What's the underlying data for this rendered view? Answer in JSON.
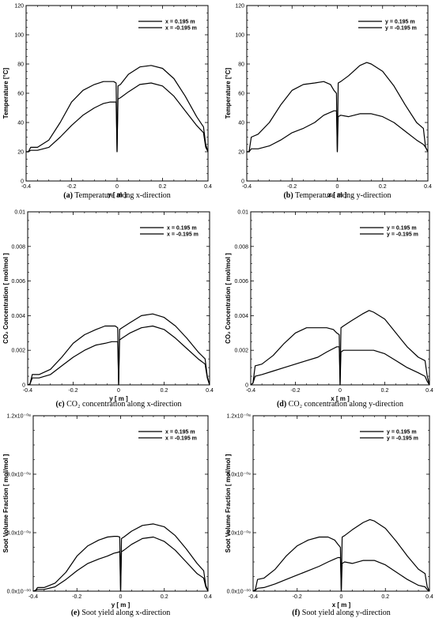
{
  "chart_data": [
    {
      "type": "line",
      "caption_letter": "(a)",
      "caption_text": "Temperature along x-direction",
      "xlabel": "y [ m ]",
      "ylabel": "Temperature [°C]",
      "xlim": [
        -0.4,
        0.4
      ],
      "ylim": [
        0,
        120
      ],
      "x_ticks": [
        "-0.4",
        "-0.2",
        "0",
        "0.2",
        "0.4"
      ],
      "y_ticks": [
        "0",
        "20",
        "40",
        "60",
        "80",
        "100",
        "120"
      ],
      "series": [
        {
          "name": "x = 0.195 m",
          "dash": "solid",
          "x": [
            -0.4,
            -0.39,
            -0.38,
            -0.35,
            -0.3,
            -0.25,
            -0.2,
            -0.15,
            -0.1,
            -0.06,
            -0.03,
            -0.015,
            -0.004,
            0,
            0.004,
            0.015,
            0.05,
            0.1,
            0.15,
            0.2,
            0.25,
            0.3,
            0.35,
            0.38,
            0.39,
            0.4
          ],
          "y": [
            20,
            20,
            23,
            23,
            28,
            40,
            54,
            62,
            66,
            68,
            68,
            68,
            67,
            20,
            65,
            66,
            73,
            78,
            79,
            77,
            70,
            58,
            44,
            37,
            25,
            20
          ]
        },
        {
          "name": "x = -0.195 m",
          "dash": "solid",
          "x": [
            -0.4,
            -0.39,
            -0.38,
            -0.35,
            -0.3,
            -0.25,
            -0.2,
            -0.15,
            -0.1,
            -0.06,
            -0.03,
            -0.015,
            -0.004,
            0,
            0.004,
            0.015,
            0.05,
            0.1,
            0.15,
            0.2,
            0.25,
            0.3,
            0.35,
            0.38,
            0.39,
            0.4
          ],
          "y": [
            20,
            20,
            21,
            21,
            23,
            30,
            38,
            45,
            50,
            53,
            54,
            54,
            54,
            20,
            56,
            57,
            61,
            66,
            67,
            65,
            58,
            48,
            38,
            33,
            23,
            20
          ]
        }
      ]
    },
    {
      "type": "line",
      "caption_letter": "(b)",
      "caption_text": "Temperature along y-direction",
      "xlabel": "x [ m ]",
      "ylabel": "Temperature [°C]",
      "xlim": [
        -0.4,
        0.4
      ],
      "ylim": [
        0,
        120
      ],
      "x_ticks": [
        "-0.4",
        "-0.2",
        "0",
        "0.2",
        "0.4"
      ],
      "y_ticks": [
        "0",
        "20",
        "40",
        "60",
        "80",
        "100",
        "120"
      ],
      "series": [
        {
          "name": "y = 0.195 m",
          "dash": "solid",
          "x": [
            -0.4,
            -0.39,
            -0.38,
            -0.35,
            -0.3,
            -0.25,
            -0.2,
            -0.15,
            -0.1,
            -0.06,
            -0.03,
            -0.015,
            -0.004,
            0,
            0.004,
            0.015,
            0.05,
            0.1,
            0.13,
            0.15,
            0.2,
            0.25,
            0.3,
            0.35,
            0.38,
            0.39,
            0.4
          ],
          "y": [
            20,
            20,
            30,
            32,
            40,
            52,
            62,
            66,
            67,
            68,
            66,
            62,
            60,
            20,
            67,
            68,
            72,
            79,
            81,
            80,
            75,
            65,
            52,
            40,
            36,
            23,
            20
          ]
        },
        {
          "name": "y = -0.195 m",
          "dash": "solid",
          "x": [
            -0.4,
            -0.39,
            -0.38,
            -0.35,
            -0.3,
            -0.25,
            -0.2,
            -0.15,
            -0.1,
            -0.06,
            -0.03,
            -0.015,
            -0.004,
            0,
            0.004,
            0.015,
            0.05,
            0.1,
            0.15,
            0.2,
            0.25,
            0.3,
            0.35,
            0.38,
            0.39,
            0.4
          ],
          "y": [
            20,
            20,
            22,
            22,
            24,
            28,
            33,
            36,
            40,
            45,
            47,
            48,
            48,
            20,
            44,
            45,
            44,
            46,
            46,
            44,
            40,
            34,
            28,
            25,
            23,
            20
          ]
        }
      ]
    },
    {
      "type": "line",
      "caption_letter": "(c)",
      "caption_text": "CO₂ concentration along x-direction",
      "xlabel": "y [ m ]",
      "ylabel": "CO₂ Concentration [ mol/mol ]",
      "xlim": [
        -0.4,
        0.4
      ],
      "ylim": [
        0,
        0.01
      ],
      "x_ticks": [
        "-0.4",
        "-0.2",
        "0",
        "0.2",
        "0.4"
      ],
      "y_ticks": [
        "0",
        "0.002",
        "0.004",
        "0.006",
        "0.008",
        "0.01"
      ],
      "series": [
        {
          "name": "x = 0.195 m",
          "dash": "solid",
          "x": [
            -0.4,
            -0.39,
            -0.38,
            -0.35,
            -0.3,
            -0.25,
            -0.2,
            -0.15,
            -0.1,
            -0.06,
            -0.03,
            -0.015,
            -0.004,
            0,
            0.004,
            0.015,
            0.05,
            0.1,
            0.15,
            0.2,
            0.25,
            0.3,
            0.35,
            0.38,
            0.39,
            0.4
          ],
          "y": [
            0,
            5e-05,
            0.0006,
            0.0006,
            0.0009,
            0.0016,
            0.0024,
            0.0029,
            0.0032,
            0.0034,
            0.0034,
            0.0034,
            0.0033,
            0,
            0.0032,
            0.0033,
            0.0036,
            0.004,
            0.0041,
            0.0039,
            0.0034,
            0.0027,
            0.0019,
            0.0015,
            0.0005,
            0
          ]
        },
        {
          "name": "x = -0.195 m",
          "dash": "solid",
          "x": [
            -0.4,
            -0.39,
            -0.38,
            -0.35,
            -0.3,
            -0.25,
            -0.2,
            -0.15,
            -0.1,
            -0.06,
            -0.03,
            -0.015,
            -0.004,
            0,
            0.004,
            0.015,
            0.05,
            0.1,
            0.15,
            0.2,
            0.25,
            0.3,
            0.35,
            0.38,
            0.39,
            0.4
          ],
          "y": [
            0,
            5e-05,
            0.0004,
            0.0004,
            0.0006,
            0.0011,
            0.0016,
            0.002,
            0.0023,
            0.0024,
            0.0025,
            0.0025,
            0.0025,
            0,
            0.0026,
            0.0027,
            0.003,
            0.0033,
            0.0034,
            0.0032,
            0.0027,
            0.0021,
            0.0015,
            0.0012,
            0.0004,
            0
          ]
        }
      ]
    },
    {
      "type": "line",
      "caption_letter": "(d)",
      "caption_text": "CO₂ concentration along y-direction",
      "xlabel": "x [ m ]",
      "ylabel": "CO₂ Concentration [ mol/mol ]",
      "xlim": [
        -0.4,
        0.4
      ],
      "ylim": [
        0,
        0.01
      ],
      "x_ticks": [
        "-0.4",
        "-0.2",
        "0",
        "0.2",
        "0.4"
      ],
      "y_ticks": [
        "0",
        "0.002",
        "0.004",
        "0.006",
        "0.008",
        "0.01"
      ],
      "series": [
        {
          "name": "y = 0.195 m",
          "dash": "solid",
          "x": [
            -0.4,
            -0.39,
            -0.38,
            -0.35,
            -0.3,
            -0.25,
            -0.2,
            -0.15,
            -0.1,
            -0.06,
            -0.03,
            -0.015,
            -0.004,
            0,
            0.004,
            0.015,
            0.05,
            0.1,
            0.13,
            0.15,
            0.2,
            0.25,
            0.3,
            0.35,
            0.38,
            0.39,
            0.4
          ],
          "y": [
            0,
            0.0001,
            0.0011,
            0.0012,
            0.0017,
            0.0024,
            0.003,
            0.0033,
            0.0033,
            0.0033,
            0.0032,
            0.003,
            0.0029,
            0,
            0.0033,
            0.0034,
            0.0037,
            0.0041,
            0.0043,
            0.0042,
            0.0038,
            0.003,
            0.0022,
            0.0016,
            0.0014,
            0.0005,
            0
          ]
        },
        {
          "name": "y = -0.195 m",
          "dash": "solid",
          "x": [
            -0.4,
            -0.39,
            -0.38,
            -0.35,
            -0.3,
            -0.25,
            -0.2,
            -0.15,
            -0.1,
            -0.06,
            -0.03,
            -0.015,
            -0.004,
            0,
            0.004,
            0.015,
            0.05,
            0.1,
            0.15,
            0.2,
            0.25,
            0.3,
            0.35,
            0.38,
            0.39,
            0.4
          ],
          "y": [
            0,
            0.0001,
            0.0005,
            0.0006,
            0.0008,
            0.001,
            0.0012,
            0.0014,
            0.0016,
            0.0019,
            0.0021,
            0.0022,
            0.0022,
            0,
            0.0019,
            0.002,
            0.002,
            0.002,
            0.002,
            0.0018,
            0.0014,
            0.001,
            0.0007,
            0.0005,
            0.0002,
            0
          ]
        }
      ]
    },
    {
      "type": "line",
      "caption_letter": "(e)",
      "caption_text": "Soot yield along x-direction",
      "xlabel": "y [ m ]",
      "ylabel": "Soot Volume Fraction [ mol/mol ]",
      "xlim": [
        -0.4,
        0.4
      ],
      "ylim": [
        0,
        1.2e-08
      ],
      "x_ticks": [
        "-0.4",
        "-0.2",
        "0",
        "0.2",
        "0.4"
      ],
      "y_ticks": [
        "0.0x10⁻⁰⁰",
        "4.0x10⁻⁰⁹",
        "8.0x10⁻⁰⁹",
        "1.2x10⁻⁰⁸"
      ],
      "series": [
        {
          "name": "x = 0.195 m",
          "dash": "solid",
          "x": [
            -0.4,
            -0.39,
            -0.38,
            -0.35,
            -0.3,
            -0.25,
            -0.2,
            -0.15,
            -0.1,
            -0.06,
            -0.03,
            -0.015,
            -0.004,
            0,
            0.004,
            0.015,
            0.05,
            0.1,
            0.15,
            0.2,
            0.25,
            0.3,
            0.35,
            0.38,
            0.39,
            0.4
          ],
          "y": [
            0,
            5e-11,
            2.5e-10,
            2.5e-10,
            5.5e-10,
            1.3e-09,
            2.4e-09,
            3.1e-09,
            3.5e-09,
            3.7e-09,
            3.75e-09,
            3.75e-09,
            3.7e-09,
            0,
            3.6e-09,
            3.7e-09,
            4.1e-09,
            4.5e-09,
            4.6e-09,
            4.4e-09,
            3.8e-09,
            2.9e-09,
            1.9e-09,
            1.4e-09,
            4e-10,
            0
          ]
        },
        {
          "name": "x = -0.195 m",
          "dash": "solid",
          "x": [
            -0.4,
            -0.39,
            -0.38,
            -0.35,
            -0.3,
            -0.25,
            -0.2,
            -0.15,
            -0.1,
            -0.06,
            -0.03,
            -0.015,
            -0.004,
            0,
            0.004,
            0.015,
            0.05,
            0.1,
            0.15,
            0.2,
            0.25,
            0.3,
            0.35,
            0.38,
            0.39,
            0.4
          ],
          "y": [
            0,
            5e-11,
            1.2e-10,
            1.2e-10,
            3e-10,
            8e-10,
            1.4e-09,
            1.9e-09,
            2.2e-09,
            2.4e-09,
            2.6e-09,
            2.65e-09,
            2.7e-09,
            0,
            2.7e-09,
            2.8e-09,
            3.2e-09,
            3.6e-09,
            3.7e-09,
            3.4e-09,
            2.8e-09,
            2e-09,
            1.2e-09,
            9e-10,
            3e-10,
            0
          ]
        }
      ]
    },
    {
      "type": "line",
      "caption_letter": "(f)",
      "caption_text": "Soot yield along y-direction",
      "xlabel": "x [ m ]",
      "ylabel": "Soot Volume Fraction [ mol/mol ]",
      "xlim": [
        -0.4,
        0.4
      ],
      "ylim": [
        0,
        1.2e-08
      ],
      "x_ticks": [
        "-0.4",
        "-0.2",
        "0",
        "0.2",
        "0.4"
      ],
      "y_ticks": [
        "0.0x10⁻⁰⁰",
        "4.0x10⁻⁰⁹",
        "8.0x10⁻⁰⁹",
        "1.2x10⁻⁰⁸"
      ],
      "series": [
        {
          "name": "y = 0.195 m",
          "dash": "solid",
          "x": [
            -0.4,
            -0.39,
            -0.38,
            -0.35,
            -0.3,
            -0.25,
            -0.2,
            -0.15,
            -0.1,
            -0.06,
            -0.03,
            -0.015,
            -0.004,
            0,
            0.004,
            0.015,
            0.05,
            0.1,
            0.13,
            0.15,
            0.2,
            0.25,
            0.3,
            0.35,
            0.38,
            0.39,
            0.4
          ],
          "y": [
            0,
            1e-10,
            8e-10,
            9e-10,
            1.5e-09,
            2.4e-09,
            3.1e-09,
            3.5e-09,
            3.7e-09,
            3.7e-09,
            3.5e-09,
            3.2e-09,
            3e-09,
            0,
            3.7e-09,
            3.8e-09,
            4.2e-09,
            4.7e-09,
            4.9e-09,
            4.8e-09,
            4.3e-09,
            3.4e-09,
            2.4e-09,
            1.5e-09,
            1.2e-09,
            3e-10,
            0
          ]
        },
        {
          "name": "y = -0.195 m",
          "dash": "solid",
          "x": [
            -0.4,
            -0.39,
            -0.38,
            -0.35,
            -0.3,
            -0.25,
            -0.2,
            -0.15,
            -0.1,
            -0.06,
            -0.03,
            -0.015,
            -0.004,
            0,
            0.004,
            0.015,
            0.05,
            0.1,
            0.15,
            0.2,
            0.25,
            0.3,
            0.35,
            0.38,
            0.39,
            0.4
          ],
          "y": [
            0,
            5e-11,
            2e-10,
            2.5e-10,
            5e-10,
            8e-10,
            1.1e-09,
            1.4e-09,
            1.7e-09,
            2e-09,
            2.2e-09,
            2.3e-09,
            2.3e-09,
            0,
            1.9e-09,
            2e-09,
            1.9e-09,
            2.1e-09,
            2.1e-09,
            1.8e-09,
            1.3e-09,
            8e-10,
            4e-10,
            3e-10,
            1e-10,
            0
          ]
        }
      ]
    }
  ]
}
